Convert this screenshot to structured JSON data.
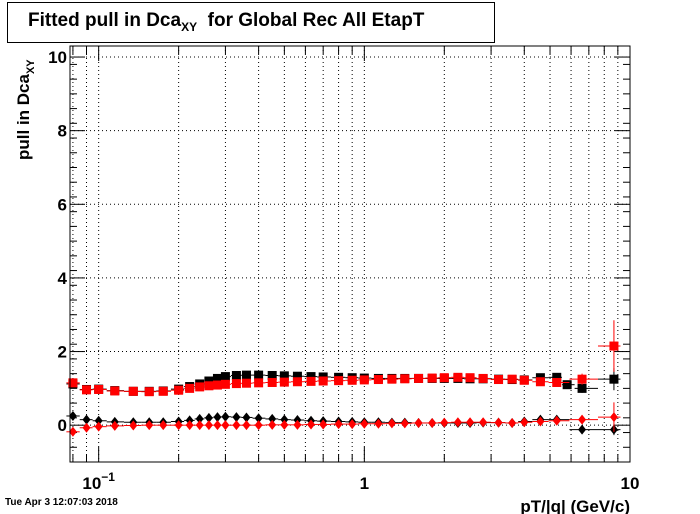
{
  "chart_data": {
    "type": "scatter",
    "title": {
      "main": "Fitted pull in Dca",
      "sub": "XY",
      "rest": "for Global Rec All EtapT"
    },
    "xlabel": "pT/|q| (GeV/c)",
    "ylabel": {
      "main": "pull in Dca",
      "sub": "XY"
    },
    "xscale": "log",
    "xlim": [
      0.078,
      10
    ],
    "ylim": [
      -1,
      10.3
    ],
    "x_ticks": [
      {
        "value": 0.1,
        "label": "10",
        "exp": "−1"
      },
      {
        "value": 1,
        "label": "1",
        "exp": ""
      },
      {
        "value": 10,
        "label": "10",
        "exp": ""
      }
    ],
    "y_ticks": [
      0,
      2,
      4,
      6,
      8,
      10
    ],
    "grid": true,
    "series": [
      {
        "marker": "square",
        "color": "#000000",
        "points": [
          [
            0.08,
            1.12
          ],
          [
            0.09,
            0.97
          ],
          [
            0.1,
            0.98
          ],
          [
            0.115,
            0.94
          ],
          [
            0.135,
            0.92
          ],
          [
            0.155,
            0.92
          ],
          [
            0.175,
            0.93
          ],
          [
            0.2,
            0.98
          ],
          [
            0.22,
            1.05
          ],
          [
            0.24,
            1.12
          ],
          [
            0.26,
            1.2
          ],
          [
            0.28,
            1.27
          ],
          [
            0.3,
            1.32
          ],
          [
            0.33,
            1.35
          ],
          [
            0.36,
            1.36
          ],
          [
            0.4,
            1.36
          ],
          [
            0.45,
            1.35
          ],
          [
            0.5,
            1.34
          ],
          [
            0.56,
            1.33
          ],
          [
            0.63,
            1.32
          ],
          [
            0.7,
            1.31
          ],
          [
            0.8,
            1.3
          ],
          [
            0.9,
            1.29
          ],
          [
            1.0,
            1.28
          ],
          [
            1.13,
            1.27
          ],
          [
            1.27,
            1.27
          ],
          [
            1.42,
            1.27
          ],
          [
            1.6,
            1.27
          ],
          [
            1.8,
            1.27
          ],
          [
            2.0,
            1.27
          ],
          [
            2.25,
            1.27
          ],
          [
            2.5,
            1.26
          ],
          [
            2.8,
            1.26
          ],
          [
            3.2,
            1.25
          ],
          [
            3.6,
            1.24
          ],
          [
            4.0,
            1.23
          ],
          [
            4.6,
            1.29
          ],
          [
            5.3,
            1.3
          ],
          [
            5.8,
            1.1
          ],
          [
            6.6,
            1.0
          ],
          [
            8.7,
            1.25
          ]
        ],
        "yerr": [
          0.03,
          0.03,
          0.03,
          0.03,
          0.03,
          0.03,
          0.03,
          0.03,
          0.03,
          0.03,
          0.03,
          0.03,
          0.03,
          0.03,
          0.03,
          0.03,
          0.03,
          0.03,
          0.03,
          0.03,
          0.03,
          0.03,
          0.03,
          0.03,
          0.03,
          0.03,
          0.03,
          0.03,
          0.03,
          0.03,
          0.03,
          0.04,
          0.04,
          0.05,
          0.05,
          0.06,
          0.07,
          0.08,
          0.1,
          0.12,
          0.3
        ]
      },
      {
        "marker": "square",
        "color": "#ff0000",
        "points": [
          [
            0.08,
            1.15
          ],
          [
            0.09,
            0.96
          ],
          [
            0.1,
            0.97
          ],
          [
            0.115,
            0.93
          ],
          [
            0.135,
            0.92
          ],
          [
            0.155,
            0.91
          ],
          [
            0.175,
            0.92
          ],
          [
            0.2,
            0.95
          ],
          [
            0.22,
            1.0
          ],
          [
            0.24,
            1.04
          ],
          [
            0.26,
            1.07
          ],
          [
            0.28,
            1.09
          ],
          [
            0.3,
            1.11
          ],
          [
            0.33,
            1.13
          ],
          [
            0.36,
            1.14
          ],
          [
            0.4,
            1.15
          ],
          [
            0.45,
            1.16
          ],
          [
            0.5,
            1.17
          ],
          [
            0.56,
            1.18
          ],
          [
            0.63,
            1.19
          ],
          [
            0.7,
            1.2
          ],
          [
            0.8,
            1.21
          ],
          [
            0.9,
            1.22
          ],
          [
            1.0,
            1.23
          ],
          [
            1.13,
            1.24
          ],
          [
            1.27,
            1.25
          ],
          [
            1.42,
            1.26
          ],
          [
            1.6,
            1.27
          ],
          [
            1.8,
            1.28
          ],
          [
            2.0,
            1.29
          ],
          [
            2.25,
            1.3
          ],
          [
            2.5,
            1.29
          ],
          [
            2.8,
            1.27
          ],
          [
            3.2,
            1.24
          ],
          [
            3.6,
            1.25
          ],
          [
            4.0,
            1.22
          ],
          [
            4.6,
            1.18
          ],
          [
            5.3,
            1.16
          ],
          [
            6.6,
            1.25
          ],
          [
            8.7,
            2.15
          ]
        ],
        "yerr": [
          0.03,
          0.03,
          0.03,
          0.03,
          0.03,
          0.03,
          0.03,
          0.03,
          0.03,
          0.03,
          0.03,
          0.03,
          0.03,
          0.03,
          0.03,
          0.03,
          0.03,
          0.03,
          0.03,
          0.03,
          0.03,
          0.03,
          0.03,
          0.03,
          0.03,
          0.03,
          0.03,
          0.03,
          0.03,
          0.03,
          0.03,
          0.04,
          0.04,
          0.05,
          0.05,
          0.06,
          0.07,
          0.09,
          0.15,
          0.7
        ]
      },
      {
        "marker": "diamond",
        "color": "#000000",
        "points": [
          [
            0.08,
            0.25
          ],
          [
            0.09,
            0.15
          ],
          [
            0.1,
            0.12
          ],
          [
            0.115,
            0.09
          ],
          [
            0.135,
            0.08
          ],
          [
            0.155,
            0.08
          ],
          [
            0.175,
            0.08
          ],
          [
            0.2,
            0.1
          ],
          [
            0.22,
            0.13
          ],
          [
            0.24,
            0.17
          ],
          [
            0.26,
            0.2
          ],
          [
            0.28,
            0.22
          ],
          [
            0.3,
            0.23
          ],
          [
            0.33,
            0.22
          ],
          [
            0.36,
            0.21
          ],
          [
            0.4,
            0.19
          ],
          [
            0.45,
            0.17
          ],
          [
            0.5,
            0.15
          ],
          [
            0.56,
            0.14
          ],
          [
            0.63,
            0.12
          ],
          [
            0.7,
            0.11
          ],
          [
            0.8,
            0.1
          ],
          [
            0.9,
            0.09
          ],
          [
            1.0,
            0.08
          ],
          [
            1.13,
            0.08
          ],
          [
            1.27,
            0.07
          ],
          [
            1.42,
            0.07
          ],
          [
            1.6,
            0.06
          ],
          [
            1.8,
            0.06
          ],
          [
            2.0,
            0.06
          ],
          [
            2.25,
            0.06
          ],
          [
            2.5,
            0.06
          ],
          [
            2.8,
            0.07
          ],
          [
            3.2,
            0.07
          ],
          [
            3.6,
            0.06
          ],
          [
            4.0,
            0.1
          ],
          [
            4.6,
            0.15
          ],
          [
            5.3,
            0.15
          ],
          [
            6.6,
            -0.12
          ],
          [
            8.7,
            -0.12
          ]
        ],
        "yerr": [
          0.03,
          0.03,
          0.03,
          0.03,
          0.03,
          0.03,
          0.03,
          0.03,
          0.03,
          0.03,
          0.03,
          0.03,
          0.03,
          0.03,
          0.03,
          0.03,
          0.03,
          0.03,
          0.03,
          0.03,
          0.03,
          0.03,
          0.03,
          0.03,
          0.03,
          0.03,
          0.03,
          0.03,
          0.03,
          0.03,
          0.03,
          0.04,
          0.04,
          0.05,
          0.05,
          0.06,
          0.07,
          0.08,
          0.1,
          0.15
        ]
      },
      {
        "marker": "diamond",
        "color": "#ff0000",
        "points": [
          [
            0.08,
            -0.18
          ],
          [
            0.09,
            -0.07
          ],
          [
            0.1,
            -0.04
          ],
          [
            0.115,
            -0.02
          ],
          [
            0.135,
            -0.01
          ],
          [
            0.155,
            0.0
          ],
          [
            0.175,
            0.0
          ],
          [
            0.2,
            0.0
          ],
          [
            0.22,
            0.0
          ],
          [
            0.24,
            0.0
          ],
          [
            0.26,
            0.0
          ],
          [
            0.28,
            0.0
          ],
          [
            0.3,
            0.0
          ],
          [
            0.33,
            0.0
          ],
          [
            0.36,
            0.0
          ],
          [
            0.4,
            0.0
          ],
          [
            0.45,
            0.01
          ],
          [
            0.5,
            0.01
          ],
          [
            0.56,
            0.01
          ],
          [
            0.63,
            0.02
          ],
          [
            0.7,
            0.02
          ],
          [
            0.8,
            0.03
          ],
          [
            0.9,
            0.03
          ],
          [
            1.0,
            0.04
          ],
          [
            1.13,
            0.04
          ],
          [
            1.27,
            0.05
          ],
          [
            1.42,
            0.05
          ],
          [
            1.6,
            0.06
          ],
          [
            1.8,
            0.06
          ],
          [
            2.0,
            0.07
          ],
          [
            2.25,
            0.08
          ],
          [
            2.5,
            0.08
          ],
          [
            2.8,
            0.08
          ],
          [
            3.2,
            0.07
          ],
          [
            3.6,
            0.06
          ],
          [
            4.0,
            0.08
          ],
          [
            4.6,
            0.1
          ],
          [
            5.3,
            0.12
          ],
          [
            6.6,
            0.15
          ],
          [
            8.7,
            0.22
          ]
        ],
        "yerr": [
          0.03,
          0.03,
          0.03,
          0.03,
          0.03,
          0.03,
          0.03,
          0.03,
          0.03,
          0.03,
          0.03,
          0.03,
          0.03,
          0.03,
          0.03,
          0.03,
          0.03,
          0.03,
          0.03,
          0.03,
          0.03,
          0.03,
          0.03,
          0.03,
          0.03,
          0.03,
          0.03,
          0.03,
          0.03,
          0.03,
          0.03,
          0.04,
          0.04,
          0.05,
          0.05,
          0.06,
          0.07,
          0.08,
          0.12,
          0.4
        ]
      }
    ]
  },
  "timestamp": "Tue Apr  3 12:07:03 2018"
}
